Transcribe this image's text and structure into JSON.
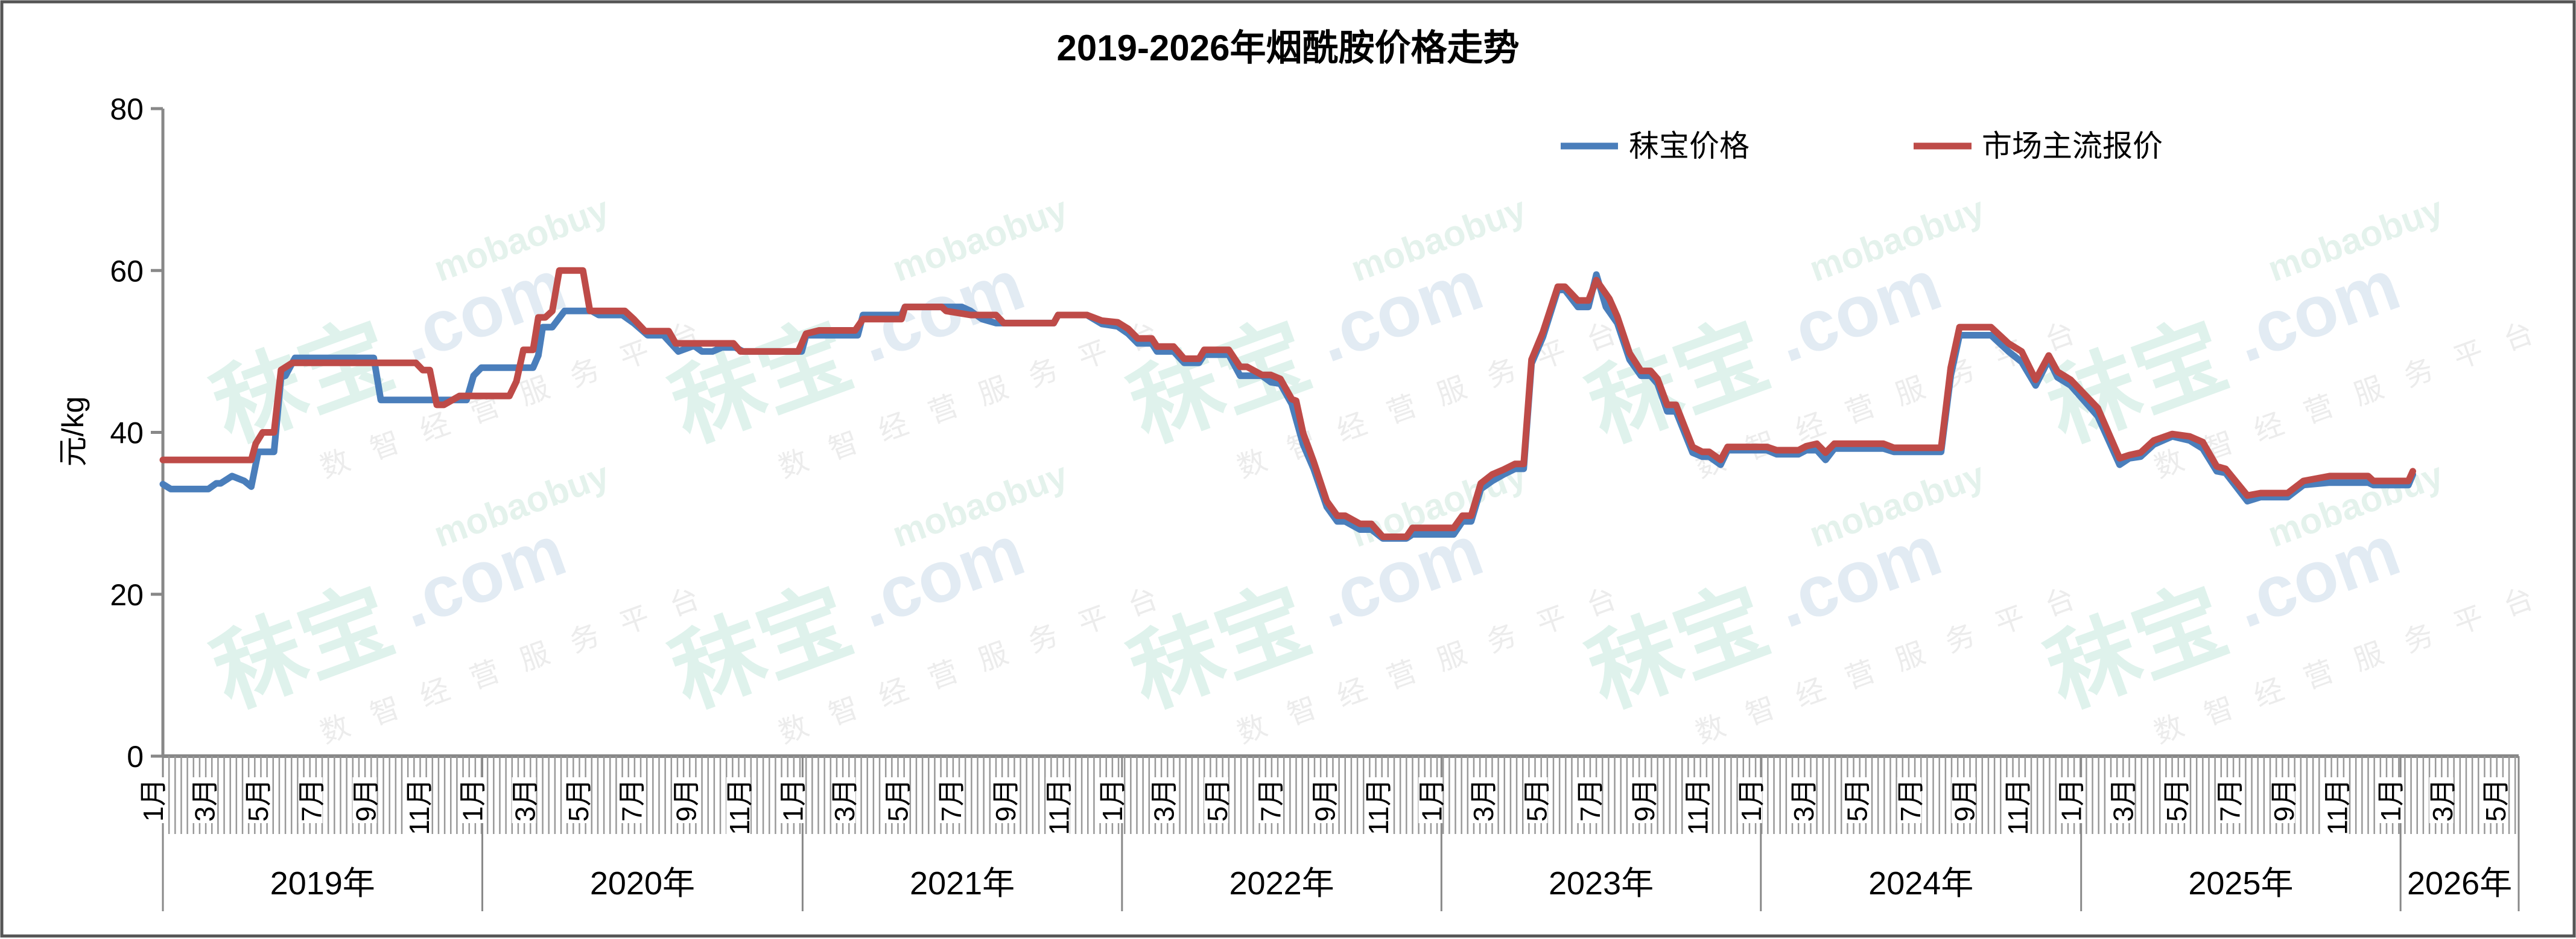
{
  "chart_data": {
    "type": "line",
    "title": "2019-2026年烟酰胺价格走势",
    "ylabel": "元/kg",
    "xlabel": "",
    "ylim": [
      0,
      80
    ],
    "yticks": [
      "0",
      "20",
      "40",
      "60",
      "80"
    ],
    "xlim": [
      "2019-01-01",
      "2026-05-16"
    ],
    "grid": false,
    "legend_position": "top-right",
    "month_labels": [
      "1月",
      "3月",
      "5月",
      "7月",
      "9月",
      "11月"
    ],
    "year_labels": [
      "2019年",
      "2020年",
      "2021年",
      "2022年",
      "2023年",
      "2024年",
      "2025年",
      "2026年"
    ],
    "series": [
      {
        "name": "秣宝价格",
        "color": "#4a7ebb",
        "points": [
          [
            "2019-01-01",
            33.6
          ],
          [
            "2019-01-10",
            33
          ],
          [
            "2019-02-22",
            33
          ],
          [
            "2019-03-03",
            33.7
          ],
          [
            "2019-03-08",
            33.7
          ],
          [
            "2019-03-21",
            34.6
          ],
          [
            "2019-04-04",
            34
          ],
          [
            "2019-04-12",
            33.3
          ],
          [
            "2019-04-20",
            37.6
          ],
          [
            "2019-05-08",
            37.6
          ],
          [
            "2019-05-16",
            46.8
          ],
          [
            "2019-05-21",
            47
          ],
          [
            "2019-06-01",
            49.2
          ],
          [
            "2019-08-30",
            49.2
          ],
          [
            "2019-09-07",
            44
          ],
          [
            "2019-12-14",
            44
          ],
          [
            "2019-12-22",
            47
          ],
          [
            "2019-12-31",
            48
          ],
          [
            "2020-02-28",
            48
          ],
          [
            "2020-03-05",
            49.5
          ],
          [
            "2020-03-10",
            53
          ],
          [
            "2020-03-21",
            53
          ],
          [
            "2020-04-04",
            55
          ],
          [
            "2020-05-05",
            55
          ],
          [
            "2020-05-13",
            54.5
          ],
          [
            "2020-06-09",
            54.5
          ],
          [
            "2020-06-22",
            53.5
          ],
          [
            "2020-07-08",
            52
          ],
          [
            "2020-07-26",
            52
          ],
          [
            "2020-08-12",
            50
          ],
          [
            "2020-08-30",
            50.7
          ],
          [
            "2020-09-08",
            50
          ],
          [
            "2020-09-20",
            50
          ],
          [
            "2020-10-01",
            50.5
          ],
          [
            "2020-10-16",
            50.5
          ],
          [
            "2020-10-25",
            50
          ],
          [
            "2020-12-31",
            50
          ],
          [
            "2021-01-05",
            52
          ],
          [
            "2021-03-05",
            52
          ],
          [
            "2021-03-11",
            54.5
          ],
          [
            "2021-04-24",
            54.5
          ],
          [
            "2021-04-28",
            55.5
          ],
          [
            "2021-07-02",
            55.5
          ],
          [
            "2021-07-12",
            55
          ],
          [
            "2021-07-25",
            54
          ],
          [
            "2021-08-10",
            53.5
          ],
          [
            "2021-10-15",
            53.5
          ],
          [
            "2021-10-20",
            54.5
          ],
          [
            "2021-11-22",
            54.5
          ],
          [
            "2021-12-09",
            53.4
          ],
          [
            "2021-12-27",
            53.1
          ],
          [
            "2022-01-08",
            52.2
          ],
          [
            "2022-01-19",
            51
          ],
          [
            "2022-02-04",
            51
          ],
          [
            "2022-02-10",
            50
          ],
          [
            "2022-03-01",
            50
          ],
          [
            "2022-03-13",
            48.6
          ],
          [
            "2022-03-30",
            48.6
          ],
          [
            "2022-04-05",
            49.6
          ],
          [
            "2022-05-03",
            49.6
          ],
          [
            "2022-05-16",
            47
          ],
          [
            "2022-06-10",
            47
          ],
          [
            "2022-06-20",
            46.2
          ],
          [
            "2022-07-01",
            46
          ],
          [
            "2022-07-14",
            43.5
          ],
          [
            "2022-07-27",
            38.5
          ],
          [
            "2022-08-08",
            35.5
          ],
          [
            "2022-08-23",
            30.8
          ],
          [
            "2022-09-04",
            29
          ],
          [
            "2022-09-13",
            29
          ],
          [
            "2022-09-30",
            28
          ],
          [
            "2022-10-13",
            28
          ],
          [
            "2022-10-26",
            26.9
          ],
          [
            "2022-11-22",
            26.9
          ],
          [
            "2022-11-29",
            27.4
          ],
          [
            "2023-01-15",
            27.4
          ],
          [
            "2023-01-25",
            29
          ],
          [
            "2023-02-04",
            29
          ],
          [
            "2023-02-15",
            33
          ],
          [
            "2023-02-28",
            34
          ],
          [
            "2023-03-13",
            34.8
          ],
          [
            "2023-03-26",
            35.5
          ],
          [
            "2023-04-05",
            35.5
          ],
          [
            "2023-04-14",
            48.5
          ],
          [
            "2023-04-27",
            51.8
          ],
          [
            "2023-05-14",
            57.6
          ],
          [
            "2023-05-22",
            57.6
          ],
          [
            "2023-06-06",
            55.5
          ],
          [
            "2023-06-18",
            55.5
          ],
          [
            "2023-06-27",
            59.5
          ],
          [
            "2023-07-08",
            55.5
          ],
          [
            "2023-07-21",
            53.5
          ],
          [
            "2023-08-04",
            49
          ],
          [
            "2023-08-17",
            47
          ],
          [
            "2023-08-28",
            47
          ],
          [
            "2023-09-05",
            46
          ],
          [
            "2023-09-16",
            42.6
          ],
          [
            "2023-09-26",
            42.6
          ],
          [
            "2023-10-15",
            37.5
          ],
          [
            "2023-10-26",
            37
          ],
          [
            "2023-11-03",
            37
          ],
          [
            "2023-11-16",
            36
          ],
          [
            "2023-11-24",
            37.8
          ],
          [
            "2024-01-08",
            37.8
          ],
          [
            "2024-01-19",
            37.3
          ],
          [
            "2024-02-13",
            37.3
          ],
          [
            "2024-02-22",
            37.8
          ],
          [
            "2024-03-05",
            37.8
          ],
          [
            "2024-03-15",
            36.6
          ],
          [
            "2024-03-25",
            38
          ],
          [
            "2024-05-20",
            38
          ],
          [
            "2024-06-01",
            37.6
          ],
          [
            "2024-07-25",
            37.6
          ],
          [
            "2024-08-05",
            47
          ],
          [
            "2024-08-15",
            52
          ],
          [
            "2024-09-20",
            52
          ],
          [
            "2024-10-10",
            50
          ],
          [
            "2024-10-25",
            48.7
          ],
          [
            "2024-11-10",
            45.8
          ],
          [
            "2024-11-25",
            49
          ],
          [
            "2024-12-05",
            46.8
          ],
          [
            "2024-12-20",
            45.8
          ],
          [
            "2025-01-20",
            42
          ],
          [
            "2025-02-14",
            36
          ],
          [
            "2025-02-25",
            36.8
          ],
          [
            "2025-03-10",
            37
          ],
          [
            "2025-03-25",
            38.5
          ],
          [
            "2025-04-15",
            39.5
          ],
          [
            "2025-05-05",
            39
          ],
          [
            "2025-05-20",
            38
          ],
          [
            "2025-06-05",
            35.2
          ],
          [
            "2025-06-15",
            35
          ],
          [
            "2025-07-10",
            31.5
          ],
          [
            "2025-07-25",
            32
          ],
          [
            "2025-08-25",
            32
          ],
          [
            "2025-09-12",
            33.5
          ],
          [
            "2025-10-12",
            33.8
          ],
          [
            "2025-11-25",
            33.8
          ],
          [
            "2025-12-01",
            33.5
          ],
          [
            "2026-01-10",
            33.5
          ],
          [
            "2026-01-15",
            34.8
          ]
        ]
      },
      {
        "name": "市场主流报价",
        "color": "#be4b48",
        "points": [
          [
            "2019-01-01",
            36.6
          ],
          [
            "2019-04-12",
            36.6
          ],
          [
            "2019-04-17",
            38.6
          ],
          [
            "2019-04-25",
            40
          ],
          [
            "2019-05-08",
            40
          ],
          [
            "2019-05-16",
            47.7
          ],
          [
            "2019-05-29",
            48.6
          ],
          [
            "2019-10-17",
            48.6
          ],
          [
            "2019-10-25",
            47.7
          ],
          [
            "2019-11-02",
            47.7
          ],
          [
            "2019-11-10",
            43.4
          ],
          [
            "2019-11-18",
            43.4
          ],
          [
            "2019-12-06",
            44.5
          ],
          [
            "2020-02-01",
            44.5
          ],
          [
            "2020-02-09",
            46.3
          ],
          [
            "2020-02-17",
            50.2
          ],
          [
            "2020-02-28",
            50.2
          ],
          [
            "2020-03-05",
            54.2
          ],
          [
            "2020-03-13",
            54.2
          ],
          [
            "2020-03-21",
            55
          ],
          [
            "2020-03-29",
            60
          ],
          [
            "2020-04-25",
            60
          ],
          [
            "2020-05-03",
            55
          ],
          [
            "2020-06-12",
            55
          ],
          [
            "2020-06-22",
            54
          ],
          [
            "2020-07-05",
            52.5
          ],
          [
            "2020-08-01",
            52.5
          ],
          [
            "2020-08-09",
            51
          ],
          [
            "2020-10-14",
            51
          ],
          [
            "2020-10-22",
            50
          ],
          [
            "2020-12-27",
            50
          ],
          [
            "2021-01-05",
            52.2
          ],
          [
            "2021-01-20",
            52.6
          ],
          [
            "2021-03-02",
            52.6
          ],
          [
            "2021-03-11",
            54
          ],
          [
            "2021-04-24",
            54
          ],
          [
            "2021-04-28",
            55.5
          ],
          [
            "2021-06-09",
            55.5
          ],
          [
            "2021-06-14",
            55
          ],
          [
            "2021-07-12",
            54.5
          ],
          [
            "2021-08-10",
            54.5
          ],
          [
            "2021-08-19",
            53.5
          ],
          [
            "2021-10-15",
            53.5
          ],
          [
            "2021-10-20",
            54.5
          ],
          [
            "2021-11-22",
            54.5
          ],
          [
            "2021-12-09",
            53.8
          ],
          [
            "2021-12-27",
            53.6
          ],
          [
            "2022-01-08",
            52.8
          ],
          [
            "2022-01-19",
            51.6
          ],
          [
            "2022-02-04",
            51.6
          ],
          [
            "2022-02-10",
            50.6
          ],
          [
            "2022-03-01",
            50.6
          ],
          [
            "2022-03-13",
            49.1
          ],
          [
            "2022-03-30",
            49.1
          ],
          [
            "2022-04-05",
            50.2
          ],
          [
            "2022-05-03",
            50.2
          ],
          [
            "2022-05-16",
            48.1
          ],
          [
            "2022-05-24",
            48.1
          ],
          [
            "2022-06-10",
            47.1
          ],
          [
            "2022-06-20",
            47.1
          ],
          [
            "2022-07-01",
            46.6
          ],
          [
            "2022-07-14",
            44.1
          ],
          [
            "2022-07-19",
            43.9
          ],
          [
            "2022-07-27",
            39.9
          ],
          [
            "2022-08-08",
            36.4
          ],
          [
            "2022-08-23",
            31.5
          ],
          [
            "2022-09-04",
            29.7
          ],
          [
            "2022-09-13",
            29.7
          ],
          [
            "2022-09-30",
            28.7
          ],
          [
            "2022-10-13",
            28.7
          ],
          [
            "2022-10-26",
            27.1
          ],
          [
            "2022-11-22",
            27.1
          ],
          [
            "2022-11-29",
            28.2
          ],
          [
            "2023-01-15",
            28.2
          ],
          [
            "2023-01-25",
            29.7
          ],
          [
            "2023-02-04",
            29.7
          ],
          [
            "2023-02-15",
            33.7
          ],
          [
            "2023-02-28",
            34.8
          ],
          [
            "2023-03-13",
            35.4
          ],
          [
            "2023-03-26",
            36.1
          ],
          [
            "2023-04-05",
            36.1
          ],
          [
            "2023-04-14",
            49
          ],
          [
            "2023-04-27",
            52.4
          ],
          [
            "2023-05-14",
            58
          ],
          [
            "2023-05-22",
            58
          ],
          [
            "2023-06-06",
            56.3
          ],
          [
            "2023-06-18",
            56.3
          ],
          [
            "2023-06-27",
            58.8
          ],
          [
            "2023-07-12",
            56.5
          ],
          [
            "2023-07-21",
            54.3
          ],
          [
            "2023-08-04",
            49.8
          ],
          [
            "2023-08-17",
            47.6
          ],
          [
            "2023-08-28",
            47.6
          ],
          [
            "2023-09-05",
            46.6
          ],
          [
            "2023-09-16",
            43.4
          ],
          [
            "2023-09-26",
            43.4
          ],
          [
            "2023-10-15",
            38.2
          ],
          [
            "2023-10-26",
            37.6
          ],
          [
            "2023-11-03",
            37.6
          ],
          [
            "2023-11-16",
            36.6
          ],
          [
            "2023-11-24",
            38.2
          ],
          [
            "2024-01-08",
            38.2
          ],
          [
            "2024-01-19",
            37.8
          ],
          [
            "2024-02-13",
            37.8
          ],
          [
            "2024-02-22",
            38.3
          ],
          [
            "2024-03-05",
            38.6
          ],
          [
            "2024-03-15",
            37.5
          ],
          [
            "2024-03-25",
            38.6
          ],
          [
            "2024-05-20",
            38.6
          ],
          [
            "2024-06-01",
            38.1
          ],
          [
            "2024-07-25",
            38.1
          ],
          [
            "2024-08-05",
            48
          ],
          [
            "2024-08-15",
            53
          ],
          [
            "2024-09-20",
            53
          ],
          [
            "2024-10-10",
            51
          ],
          [
            "2024-10-25",
            50
          ],
          [
            "2024-11-10",
            46.5
          ],
          [
            "2024-11-25",
            49.5
          ],
          [
            "2024-12-05",
            47.5
          ],
          [
            "2024-12-20",
            46.5
          ],
          [
            "2025-01-20",
            43
          ],
          [
            "2025-02-14",
            36.8
          ],
          [
            "2025-02-25",
            37.2
          ],
          [
            "2025-03-10",
            37.5
          ],
          [
            "2025-03-25",
            39
          ],
          [
            "2025-04-15",
            39.8
          ],
          [
            "2025-05-05",
            39.5
          ],
          [
            "2025-05-20",
            38.8
          ],
          [
            "2025-06-05",
            35.8
          ],
          [
            "2025-06-15",
            35.5
          ],
          [
            "2025-07-10",
            32.2
          ],
          [
            "2025-07-25",
            32.5
          ],
          [
            "2025-08-25",
            32.5
          ],
          [
            "2025-09-12",
            34
          ],
          [
            "2025-10-12",
            34.6
          ],
          [
            "2025-11-25",
            34.6
          ],
          [
            "2025-12-01",
            34
          ],
          [
            "2026-01-10",
            34
          ],
          [
            "2026-01-15",
            35.2
          ]
        ]
      }
    ]
  },
  "watermark": {
    "logo": "秣宝",
    "domain": ".com",
    "site": "mobaobuy",
    "slogan": "数智经营服务平台"
  }
}
